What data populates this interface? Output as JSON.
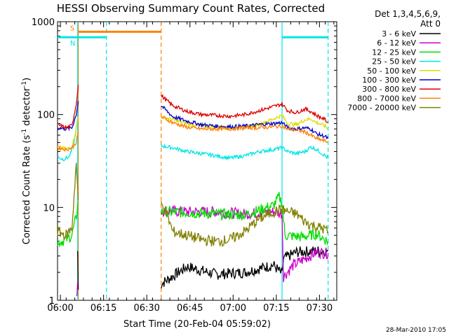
{
  "chart_data": {
    "type": "line",
    "title": "HESSI Observing Summary Count Rates, Corrected",
    "xlabel": "Start Time (20-Feb-04 05:59:02)",
    "ylabel_main": "Corrected Count Rate (s",
    "ylabel_sup1": "-1",
    "ylabel_mid": " detector",
    "ylabel_sup2": "-1",
    "ylabel_end": ")",
    "yscale": "log",
    "ylim": [
      1,
      1000
    ],
    "xlim_minutes": [
      0,
      97
    ],
    "yticks": [
      {
        "v": 1,
        "label": "1"
      },
      {
        "v": 10,
        "label": "10"
      },
      {
        "v": 100,
        "label": "100"
      },
      {
        "v": 1000,
        "label": "1000"
      }
    ],
    "xticks": [
      {
        "m": 1,
        "label": "06:00"
      },
      {
        "m": 16,
        "label": "06:15"
      },
      {
        "m": 31,
        "label": "06:30"
      },
      {
        "m": 46,
        "label": "06:45"
      },
      {
        "m": 61,
        "label": "07:00"
      },
      {
        "m": 76,
        "label": "07:15"
      },
      {
        "m": 91,
        "label": "07:30"
      }
    ],
    "legend_header": [
      "Det 1,3,4,5,6,9,",
      "Att 0"
    ],
    "legend_placement": "right",
    "series": [
      {
        "name": "3 - 6 keV",
        "color": "#000000",
        "points": [
          [
            7,
            3.4
          ],
          [
            7.2,
            1.3
          ],
          [
            36,
            1.5
          ],
          [
            45,
            2.3
          ],
          [
            55,
            1.9
          ],
          [
            65,
            2.0
          ],
          [
            75,
            2.4
          ],
          [
            78,
            1.9
          ],
          [
            78.5,
            2.8
          ],
          [
            83,
            3.3
          ],
          [
            90,
            3.4
          ],
          [
            94,
            3.4
          ]
        ]
      },
      {
        "name": "6 - 12 keV",
        "color": "#cc00cc",
        "points": [
          [
            6.5,
            1.0
          ],
          [
            7.0,
            1.6
          ],
          [
            36,
            9.2
          ],
          [
            45,
            9.0
          ],
          [
            55,
            9.0
          ],
          [
            65,
            8.5
          ],
          [
            75,
            9.0
          ],
          [
            78,
            8.5
          ],
          [
            78.5,
            1.8
          ],
          [
            82,
            2.4
          ],
          [
            90,
            3.3
          ],
          [
            94,
            3.2
          ]
        ]
      },
      {
        "name": "12 - 25 keV",
        "color": "#00dd00",
        "points": [
          [
            0,
            4.2
          ],
          [
            3,
            4.5
          ],
          [
            5,
            5.0
          ],
          [
            6.5,
            8.0
          ],
          [
            7.2,
            11.5
          ],
          [
            36,
            9.0
          ],
          [
            45,
            8.8
          ],
          [
            55,
            8.5
          ],
          [
            65,
            8.3
          ],
          [
            75,
            10.5
          ],
          [
            77,
            13.0
          ],
          [
            78,
            11.0
          ],
          [
            79,
            5.0
          ],
          [
            85,
            4.8
          ],
          [
            90,
            5.2
          ],
          [
            94,
            4.3
          ]
        ]
      },
      {
        "name": "25 - 50 keV",
        "color": "#00e5e5",
        "points": [
          [
            0,
            35
          ],
          [
            2,
            33
          ],
          [
            4,
            35
          ],
          [
            5.5,
            45
          ],
          [
            6.5,
            70
          ],
          [
            7.2,
            100
          ],
          [
            36,
            46
          ],
          [
            40,
            44
          ],
          [
            45,
            40
          ],
          [
            50,
            38
          ],
          [
            55,
            36
          ],
          [
            60,
            34
          ],
          [
            65,
            36
          ],
          [
            70,
            40
          ],
          [
            75,
            42
          ],
          [
            78,
            44
          ],
          [
            80,
            40
          ],
          [
            83,
            38
          ],
          [
            86,
            40
          ],
          [
            88,
            45
          ],
          [
            90,
            42
          ],
          [
            93,
            36
          ],
          [
            94,
            34
          ]
        ]
      },
      {
        "name": "50 - 100 keV",
        "color": "#dddd00",
        "points": [
          [
            0,
            45
          ],
          [
            3,
            42
          ],
          [
            5,
            45
          ],
          [
            6.5,
            70
          ],
          [
            7.2,
            95
          ],
          [
            36,
            95
          ],
          [
            40,
            88
          ],
          [
            45,
            80
          ],
          [
            50,
            75
          ],
          [
            55,
            73
          ],
          [
            60,
            72
          ],
          [
            65,
            74
          ],
          [
            70,
            78
          ],
          [
            75,
            90
          ],
          [
            78,
            98
          ],
          [
            80,
            80
          ],
          [
            83,
            78
          ],
          [
            86,
            88
          ],
          [
            88,
            90
          ],
          [
            90,
            82
          ],
          [
            93,
            75
          ],
          [
            94,
            70
          ]
        ]
      },
      {
        "name": "100 - 300 keV",
        "color": "#0000cc",
        "points": [
          [
            0,
            72
          ],
          [
            3,
            70
          ],
          [
            5,
            72
          ],
          [
            6.5,
            100
          ],
          [
            7.2,
            140
          ],
          [
            36,
            125
          ],
          [
            40,
            95
          ],
          [
            45,
            85
          ],
          [
            50,
            78
          ],
          [
            55,
            75
          ],
          [
            60,
            74
          ],
          [
            65,
            75
          ],
          [
            70,
            78
          ],
          [
            75,
            80
          ],
          [
            78,
            82
          ],
          [
            80,
            72
          ],
          [
            83,
            70
          ],
          [
            86,
            72
          ],
          [
            88,
            70
          ],
          [
            90,
            62
          ],
          [
            93,
            58
          ],
          [
            94,
            55
          ]
        ]
      },
      {
        "name": "300 - 800 keV",
        "color": "#dd0000",
        "points": [
          [
            0,
            78
          ],
          [
            3,
            72
          ],
          [
            5,
            76
          ],
          [
            6.5,
            130
          ],
          [
            7.2,
            210
          ],
          [
            36,
            160
          ],
          [
            40,
            125
          ],
          [
            45,
            108
          ],
          [
            50,
            100
          ],
          [
            55,
            98
          ],
          [
            60,
            96
          ],
          [
            65,
            100
          ],
          [
            70,
            110
          ],
          [
            75,
            122
          ],
          [
            78,
            130
          ],
          [
            80,
            110
          ],
          [
            83,
            105
          ],
          [
            86,
            115
          ],
          [
            88,
            108
          ],
          [
            90,
            98
          ],
          [
            93,
            88
          ],
          [
            94,
            82
          ]
        ]
      },
      {
        "name": "800 - 7000 keV",
        "color": "#ff8000",
        "points": [
          [
            0,
            44
          ],
          [
            3,
            42
          ],
          [
            5,
            44
          ],
          [
            6.5,
            50
          ],
          [
            7.2,
            65
          ],
          [
            36,
            95
          ],
          [
            40,
            82
          ],
          [
            45,
            73
          ],
          [
            50,
            70
          ],
          [
            55,
            70
          ],
          [
            60,
            70
          ],
          [
            65,
            72
          ],
          [
            70,
            72
          ],
          [
            75,
            74
          ],
          [
            78,
            75
          ],
          [
            80,
            70
          ],
          [
            83,
            68
          ],
          [
            86,
            65
          ],
          [
            88,
            60
          ],
          [
            90,
            55
          ],
          [
            93,
            52
          ],
          [
            94,
            50
          ]
        ]
      },
      {
        "name": "7000 - 20000 keV",
        "color": "#808000",
        "points": [
          [
            0,
            5.5
          ],
          [
            3,
            5.0
          ],
          [
            5,
            6.0
          ],
          [
            6.5,
            30
          ],
          [
            7.2,
            12
          ],
          [
            36,
            11.0
          ],
          [
            38,
            8.5
          ],
          [
            40,
            5.5
          ],
          [
            45,
            5.0
          ],
          [
            50,
            4.5
          ],
          [
            55,
            4.3
          ],
          [
            60,
            4.5
          ],
          [
            65,
            5.5
          ],
          [
            70,
            7.5
          ],
          [
            75,
            9.0
          ],
          [
            78,
            9.5
          ],
          [
            80,
            9.0
          ],
          [
            83,
            8.5
          ],
          [
            86,
            7.0
          ],
          [
            88,
            6.5
          ],
          [
            90,
            6.2
          ],
          [
            93,
            5.8
          ],
          [
            94,
            5.5
          ]
        ]
      }
    ],
    "bars": [
      {
        "label": "S",
        "color": "#ff8000",
        "y": 780,
        "x1": 7,
        "x2": 36
      },
      {
        "label": "N",
        "color": "#00e5e5",
        "y": 680,
        "x1": 0,
        "x2": 17
      },
      {
        "label": "",
        "color": "#00e5e5",
        "y": 680,
        "x1": 78,
        "x2": 94
      }
    ],
    "vlines": [
      {
        "m": 7.2,
        "color": "#ff8000",
        "style": "solid"
      },
      {
        "m": 7.0,
        "color": "#00e5e5",
        "style": "solid"
      },
      {
        "m": 17,
        "color": "#00e5e5",
        "style": "dashed"
      },
      {
        "m": 36,
        "color": "#ff8000",
        "style": "dashed"
      },
      {
        "m": 78,
        "color": "#00e5e5",
        "style": "solid"
      },
      {
        "m": 94,
        "color": "#00e5e5",
        "style": "dashed"
      }
    ],
    "footer": "28-Mar-2010 17:05"
  }
}
